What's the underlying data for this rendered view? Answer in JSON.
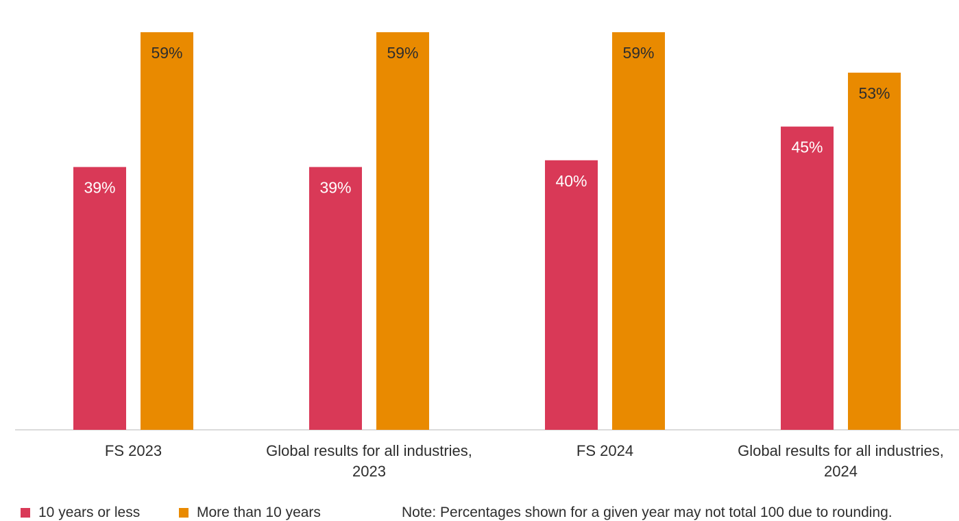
{
  "chart_data": {
    "type": "bar",
    "categories": [
      [
        "FS 2023"
      ],
      [
        "Global results for all industries,",
        "2023"
      ],
      [
        "FS 2024"
      ],
      [
        "Global results for all industries,",
        "2024"
      ]
    ],
    "series": [
      {
        "name": "10 years or less",
        "color": "#d93957",
        "label_color": "#ffffff",
        "values": [
          39,
          39,
          40,
          45
        ]
      },
      {
        "name": "More than 10 years",
        "color": "#e98a00",
        "label_color": "#2d2d2d",
        "values": [
          59,
          59,
          59,
          53
        ]
      }
    ],
    "ylim": [
      0,
      59
    ],
    "value_suffix": "%",
    "legend_position": "bottom-left"
  },
  "legend": {
    "items": [
      {
        "label": "10 years or less",
        "color": "#d93957"
      },
      {
        "label": "More than 10 years",
        "color": "#e98a00"
      }
    ]
  },
  "note": "Note: Percentages shown for a given year may not total 100 due to rounding."
}
